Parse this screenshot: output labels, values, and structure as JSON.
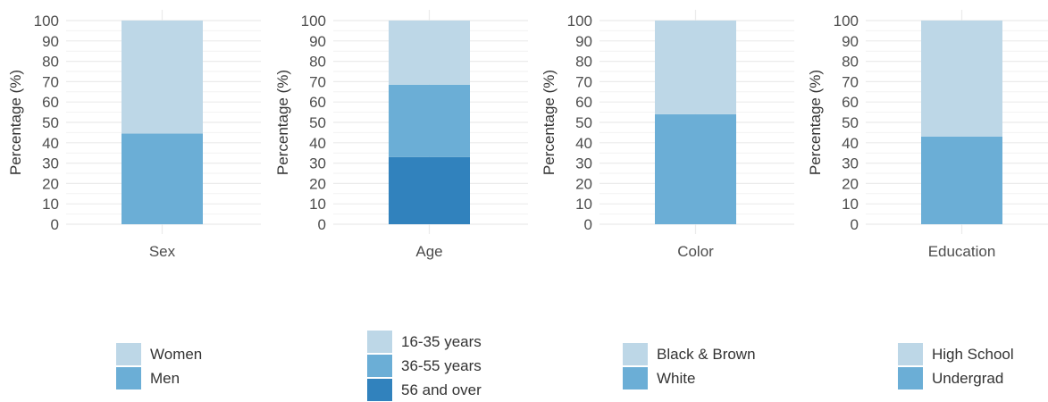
{
  "chart_data": [
    {
      "type": "bar",
      "stacked": true,
      "xlabel": "Sex",
      "ylabel": "Percentage (%)",
      "ylim": [
        0,
        100
      ],
      "yticks": [
        0,
        10,
        20,
        30,
        40,
        50,
        60,
        70,
        80,
        90,
        100
      ],
      "grid": true,
      "series": [
        {
          "name": "Men",
          "value": 44.5,
          "color": "#6baed6"
        },
        {
          "name": "Women",
          "value": 55.5,
          "color": "#bdd7e7"
        }
      ],
      "legend": [
        "Women",
        "Men"
      ]
    },
    {
      "type": "bar",
      "stacked": true,
      "xlabel": "Age",
      "ylabel": "Percentage (%)",
      "ylim": [
        0,
        100
      ],
      "yticks": [
        0,
        10,
        20,
        30,
        40,
        50,
        60,
        70,
        80,
        90,
        100
      ],
      "grid": true,
      "series": [
        {
          "name": "56 and over",
          "value": 33,
          "color": "#3182bd"
        },
        {
          "name": "36-55 years",
          "value": 35.5,
          "color": "#6baed6"
        },
        {
          "name": "16-35 years",
          "value": 31.5,
          "color": "#bdd7e7"
        }
      ],
      "legend": [
        "16-35 years",
        "36-55 years",
        "56 and over"
      ]
    },
    {
      "type": "bar",
      "stacked": true,
      "xlabel": "Color",
      "ylabel": "Percentage (%)",
      "ylim": [
        0,
        100
      ],
      "yticks": [
        0,
        10,
        20,
        30,
        40,
        50,
        60,
        70,
        80,
        90,
        100
      ],
      "grid": true,
      "series": [
        {
          "name": "White",
          "value": 54,
          "color": "#6baed6"
        },
        {
          "name": "Black & Brown",
          "value": 46,
          "color": "#bdd7e7"
        }
      ],
      "legend": [
        "Black & Brown",
        "White"
      ]
    },
    {
      "type": "bar",
      "stacked": true,
      "xlabel": "Education",
      "ylabel": "Percentage (%)",
      "ylim": [
        0,
        100
      ],
      "yticks": [
        0,
        10,
        20,
        30,
        40,
        50,
        60,
        70,
        80,
        90,
        100
      ],
      "grid": true,
      "series": [
        {
          "name": "Undergrad",
          "value": 43,
          "color": "#6baed6"
        },
        {
          "name": "High School",
          "value": 57,
          "color": "#bdd7e7"
        }
      ],
      "legend": [
        "High School",
        "Undergrad"
      ]
    }
  ]
}
